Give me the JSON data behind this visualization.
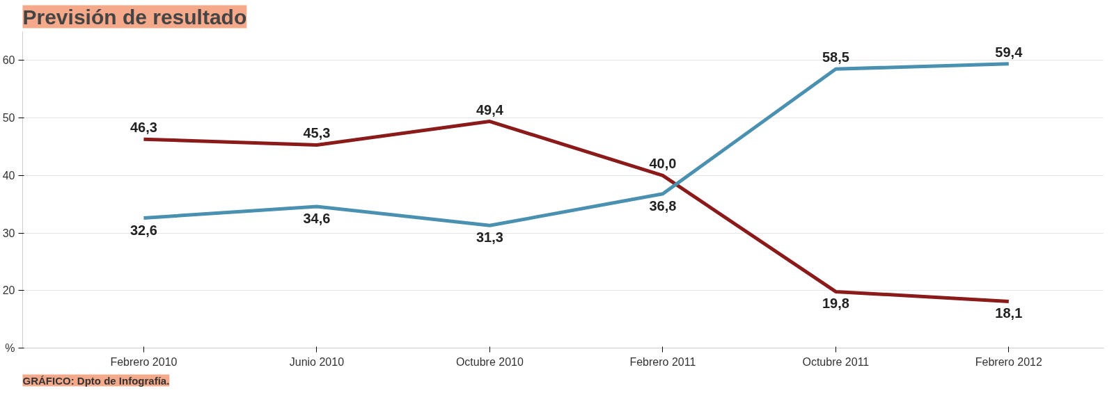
{
  "chart_data": {
    "type": "line",
    "title": "Previsión de resultado",
    "categories": [
      "Febrero 2010",
      "Junio 2010",
      "Octubre 2010",
      "Febrero 2011",
      "Octubre 2011",
      "Febrero 2012"
    ],
    "series": [
      {
        "color": "#8b1a1a",
        "values": [
          46.3,
          45.3,
          49.4,
          40.0,
          19.8,
          18.1
        ],
        "value_labels": [
          "46,3",
          "45,3",
          "49,4",
          "40,0",
          "19,8",
          "18,1"
        ]
      },
      {
        "color": "#4a90b0",
        "values": [
          32.6,
          34.6,
          31.3,
          36.8,
          58.5,
          59.4
        ],
        "value_labels": [
          "32,6",
          "34,6",
          "31,3",
          "36,8",
          "58,5",
          "59,4"
        ]
      }
    ],
    "ylim": [
      10,
      65
    ],
    "yticks": [
      {
        "value": 10,
        "label": "%"
      },
      20,
      30,
      40,
      50,
      60
    ],
    "grid": "y",
    "annotations": [
      "GRÁFICO: Dpto de Infografía."
    ]
  }
}
